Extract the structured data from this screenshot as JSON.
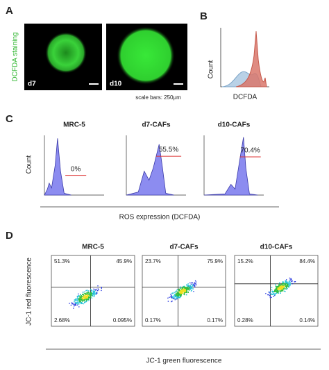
{
  "panels": {
    "A": {
      "label": "A",
      "stain_label": "DCFDA staining",
      "images": [
        "d7",
        "d10"
      ],
      "scale_note": "scale bars: 250μm"
    },
    "B": {
      "label": "B",
      "y_label": "Count",
      "x_label": "DCFDA"
    },
    "C": {
      "label": "C",
      "y_label": "Count",
      "x_label": "ROS expression (DCFDA)",
      "plots": [
        {
          "title": "MRC-5",
          "gate": "0%"
        },
        {
          "title": "d7-CAFs",
          "gate": "55.5%"
        },
        {
          "title": "d10-CAFs",
          "gate": "70.4%"
        }
      ]
    },
    "D": {
      "label": "D",
      "y_label": "JC-1 red fluorescence",
      "x_label": "JC-1 green fluorescence",
      "plots": [
        {
          "title": "MRC-5",
          "quadrants": [
            "51.3%",
            "45.9%",
            "2.68%",
            "0.095%"
          ]
        },
        {
          "title": "d7-CAFs",
          "quadrants": [
            "23.7%",
            "75.9%",
            "0.17%",
            "0.17%"
          ]
        },
        {
          "title": "d10-CAFs",
          "quadrants": [
            "15.2%",
            "84.4%",
            "0.28%",
            "0.14%"
          ]
        }
      ]
    }
  }
}
